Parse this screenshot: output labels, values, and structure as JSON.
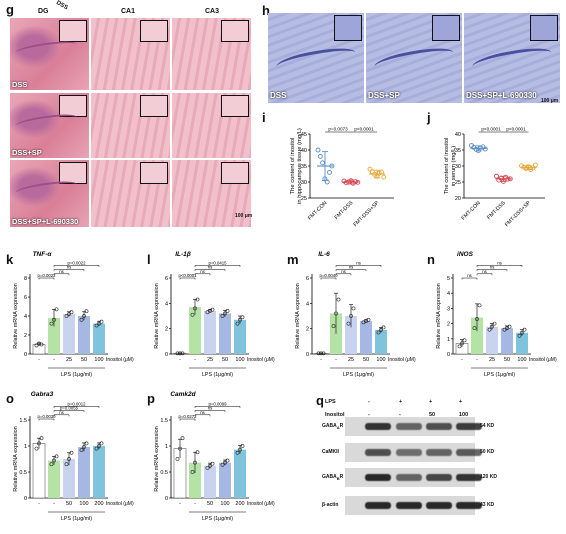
{
  "panel_g": {
    "label": "g",
    "columns": [
      "DG",
      "CA1",
      "CA3"
    ],
    "cropped_header": "DSS",
    "rows": [
      "DSS",
      "DSS+SP",
      "DSS+SP+L-690330"
    ],
    "scale": "100 μm"
  },
  "panel_h": {
    "label": "h",
    "images": [
      "DSS",
      "DSS+SP",
      "DSS+SP+L-690330"
    ],
    "scale": "100 μm"
  },
  "panel_q": {
    "label": "q",
    "header_rows": [
      {
        "label": "LPS",
        "values": [
          "-",
          "+",
          "+",
          "+"
        ]
      },
      {
        "label": "Inositol",
        "values": [
          "-",
          "-",
          "50",
          "100"
        ]
      }
    ],
    "blots": [
      {
        "name": "GABA_AR",
        "sub": "A",
        "kd": "54 KD"
      },
      {
        "name": "CaMKII",
        "sub": "",
        "kd": "50 KD"
      },
      {
        "name": "GABA_BR",
        "sub": "B",
        "kd": "120 KD"
      },
      {
        "name": "β-actin",
        "sub": "",
        "kd": "43 KD"
      }
    ]
  },
  "chart_data": [
    {
      "id": "i",
      "type": "scatter",
      "ylabel": "The content of inositol in hippocampus tissue (mg/L)",
      "categories": [
        "FMT-CON",
        "FMT-DSS",
        "FMT-DSS+SP"
      ],
      "colors": [
        "#5b8fc9",
        "#d24a55",
        "#e8a83a"
      ],
      "means": [
        35,
        30,
        32.5
      ],
      "sd": [
        4.5,
        0.6,
        1.2
      ],
      "points": [
        [
          40,
          38,
          36,
          31,
          30,
          33,
          35
        ],
        [
          30.3,
          29.8,
          30.0,
          30.4,
          29.6,
          30.1,
          29.9
        ],
        [
          34,
          33.2,
          32.4,
          31.8,
          32.8,
          33.1,
          31.5
        ]
      ],
      "ylim": [
        25,
        45
      ],
      "ticks": [
        25,
        30,
        35,
        40,
        45
      ],
      "sig": [
        {
          "a": 0,
          "b": 1,
          "text": "p=0.0073"
        },
        {
          "a": 1,
          "b": 2,
          "text": "p<0.0001"
        }
      ]
    },
    {
      "id": "j",
      "type": "scatter",
      "ylabel": "The content of inositol in serum (mg/L)",
      "categories": [
        "FMT-CON",
        "FMT-DSS",
        "FMT-DSS+SP"
      ],
      "colors": [
        "#5b8fc9",
        "#d24a55",
        "#e8a83a"
      ],
      "means": [
        35.5,
        26,
        29.5
      ],
      "sd": [
        0.8,
        0.8,
        0.6
      ],
      "points": [
        [
          36.4,
          35.8,
          35.2,
          34.8,
          35.6,
          36.0,
          35.3
        ],
        [
          26.8,
          25.6,
          26.2,
          25.2,
          26.5,
          25.9,
          26.0
        ],
        [
          30.1,
          29.6,
          29.2,
          29.8,
          28.9,
          29.4,
          30.3
        ]
      ],
      "ylim": [
        20,
        40
      ],
      "ticks": [
        20,
        25,
        30,
        35,
        40
      ],
      "sig": [
        {
          "a": 0,
          "b": 1,
          "text": "p<0.0001"
        },
        {
          "a": 1,
          "b": 2,
          "text": "p<0.0001"
        }
      ]
    },
    {
      "id": "k",
      "type": "bar",
      "title": "TNF-α",
      "ylabel": "Relative mRNA expression",
      "xcat": [
        "-",
        "-",
        "25",
        "50",
        "100"
      ],
      "x_unit": "Inositol (μM)",
      "lps": "LPS (1μg/ml)",
      "values": [
        1.0,
        3.8,
        4.2,
        4.0,
        3.2
      ],
      "errors": [
        0.15,
        0.9,
        0.25,
        0.45,
        0.25
      ],
      "points": [
        [
          0.9,
          1.1,
          1.0
        ],
        [
          3.2,
          3.6,
          4.7
        ],
        [
          4.0,
          4.2,
          4.4
        ],
        [
          3.6,
          4.0,
          4.5
        ],
        [
          3.0,
          3.2,
          3.4
        ]
      ],
      "ylim": [
        0,
        8
      ],
      "ticks": [
        0,
        2,
        4,
        6,
        8
      ],
      "sig": [
        {
          "a": 0,
          "b": 1,
          "text": "p=0.0022"
        },
        {
          "a": 1,
          "b": 2,
          "text": "ns"
        },
        {
          "a": 1,
          "b": 3,
          "text": "ns"
        },
        {
          "a": 1,
          "b": 4,
          "text": "p=0.0022"
        }
      ]
    },
    {
      "id": "l",
      "type": "bar",
      "title": "IL-1β",
      "ylabel": "Relative mRNA expression",
      "xcat": [
        "-",
        "-",
        "25",
        "50",
        "100"
      ],
      "x_unit": "Inositol (μM)",
      "lps": "LPS (1μg/ml)",
      "values": [
        0.05,
        3.7,
        3.4,
        3.2,
        2.7
      ],
      "errors": [
        0.02,
        0.6,
        0.1,
        0.25,
        0.3
      ],
      "points": [
        [
          0.05,
          0.05,
          0.05
        ],
        [
          3.1,
          3.6,
          4.3
        ],
        [
          3.3,
          3.4,
          3.5
        ],
        [
          3.0,
          3.2,
          3.4
        ],
        [
          2.4,
          2.7,
          2.9
        ]
      ],
      "ylim": [
        0,
        6
      ],
      "ticks": [
        0,
        2,
        4,
        6
      ],
      "sig": [
        {
          "a": 0,
          "b": 1,
          "text": "p<0.0001"
        },
        {
          "a": 1,
          "b": 2,
          "text": "ns"
        },
        {
          "a": 1,
          "b": 3,
          "text": "ns"
        },
        {
          "a": 1,
          "b": 4,
          "text": "p=0.0415"
        }
      ]
    },
    {
      "id": "m",
      "type": "bar",
      "title": "IL-6",
      "ylabel": "Relative mRNA expression",
      "xcat": [
        "-",
        "-",
        "25",
        "50",
        "100"
      ],
      "x_unit": "Inositol (μM)",
      "lps": "LPS (1μg/ml)",
      "values": [
        0.05,
        3.2,
        3.0,
        2.6,
        1.9
      ],
      "errors": [
        0.02,
        1.6,
        0.9,
        0.1,
        0.2
      ],
      "points": [
        [
          0.05,
          0.05,
          0.05
        ],
        [
          2.2,
          3.2,
          4.3
        ],
        [
          2.4,
          3.0,
          3.6
        ],
        [
          2.5,
          2.6,
          2.7
        ],
        [
          1.7,
          1.9,
          2.1
        ]
      ],
      "ylim": [
        0,
        6
      ],
      "ticks": [
        0,
        2,
        4,
        6
      ],
      "sig": [
        {
          "a": 0,
          "b": 1,
          "text": "p=0.0040"
        },
        {
          "a": 1,
          "b": 2,
          "text": "ns"
        },
        {
          "a": 1,
          "b": 3,
          "text": "ns"
        },
        {
          "a": 1,
          "b": 4,
          "text": "ns"
        }
      ]
    },
    {
      "id": "n",
      "type": "bar",
      "title": "iNOS",
      "ylabel": "Relative mRNA expression",
      "xcat": [
        "-",
        "-",
        "25",
        "50",
        "100"
      ],
      "x_unit": "Inositol (μM)",
      "lps": "LPS (1μg/ml)",
      "values": [
        0.7,
        2.4,
        1.8,
        1.7,
        1.4
      ],
      "errors": [
        0.25,
        0.9,
        0.2,
        0.15,
        0.2
      ],
      "points": [
        [
          0.5,
          0.7,
          0.9
        ],
        [
          1.7,
          2.3,
          3.2
        ],
        [
          1.6,
          1.8,
          2.0
        ],
        [
          1.6,
          1.7,
          1.8
        ],
        [
          1.2,
          1.4,
          1.6
        ]
      ],
      "ylim": [
        0,
        5
      ],
      "ticks": [
        0,
        1,
        2,
        3,
        4,
        5
      ],
      "sig": [
        {
          "a": 0,
          "b": 1,
          "text": "ns"
        },
        {
          "a": 1,
          "b": 2,
          "text": "ns"
        },
        {
          "a": 1,
          "b": 3,
          "text": "ns"
        },
        {
          "a": 1,
          "b": 4,
          "text": "ns"
        }
      ]
    },
    {
      "id": "o",
      "type": "bar",
      "title": "Gabra3",
      "ylabel": "Relative mRNA expression",
      "xcat": [
        "-",
        "-",
        "50",
        "100",
        "200"
      ],
      "x_unit": "Inositol (μM)",
      "lps": "LPS (1μg/ml)",
      "values": [
        1.05,
        0.72,
        0.75,
        0.98,
        1.0
      ],
      "errors": [
        0.1,
        0.08,
        0.12,
        0.08,
        0.06
      ],
      "points": [
        [
          0.95,
          1.05,
          1.15
        ],
        [
          0.65,
          0.72,
          0.8
        ],
        [
          0.65,
          0.75,
          0.87
        ],
        [
          0.92,
          0.98,
          1.05
        ],
        [
          0.95,
          1.0,
          1.05
        ]
      ],
      "ylim": [
        0,
        1.5
      ],
      "ticks": [
        0.0,
        0.5,
        1.0,
        1.5
      ],
      "sig": [
        {
          "a": 0,
          "b": 1,
          "text": "p=0.0030"
        },
        {
          "a": 1,
          "b": 2,
          "text": "ns"
        },
        {
          "a": 1,
          "b": 3,
          "text": "p=0.0055"
        },
        {
          "a": 1,
          "b": 4,
          "text": "p=0.0012"
        }
      ]
    },
    {
      "id": "p",
      "type": "bar",
      "title": "Camk2d",
      "ylabel": "Relative mRNA expression",
      "xcat": [
        "-",
        "-",
        "50",
        "100",
        "200"
      ],
      "x_unit": "Inositol (μM)",
      "lps": "LPS (1μg/ml)",
      "values": [
        0.95,
        0.68,
        0.62,
        0.68,
        0.93
      ],
      "errors": [
        0.18,
        0.2,
        0.05,
        0.05,
        0.08
      ],
      "points": [
        [
          0.75,
          0.95,
          1.15
        ],
        [
          0.5,
          0.68,
          0.88
        ],
        [
          0.58,
          0.62,
          0.66
        ],
        [
          0.64,
          0.68,
          0.72
        ],
        [
          0.87,
          0.93,
          1.0
        ]
      ],
      "ylim": [
        0,
        1.5
      ],
      "ticks": [
        0.0,
        0.5,
        1.0,
        1.5
      ],
      "sig": [
        {
          "a": 0,
          "b": 1,
          "text": "p=0.0272"
        },
        {
          "a": 1,
          "b": 2,
          "text": "ns"
        },
        {
          "a": 1,
          "b": 3,
          "text": "ns"
        },
        {
          "a": 1,
          "b": 4,
          "text": "p=0.0099"
        }
      ]
    }
  ]
}
